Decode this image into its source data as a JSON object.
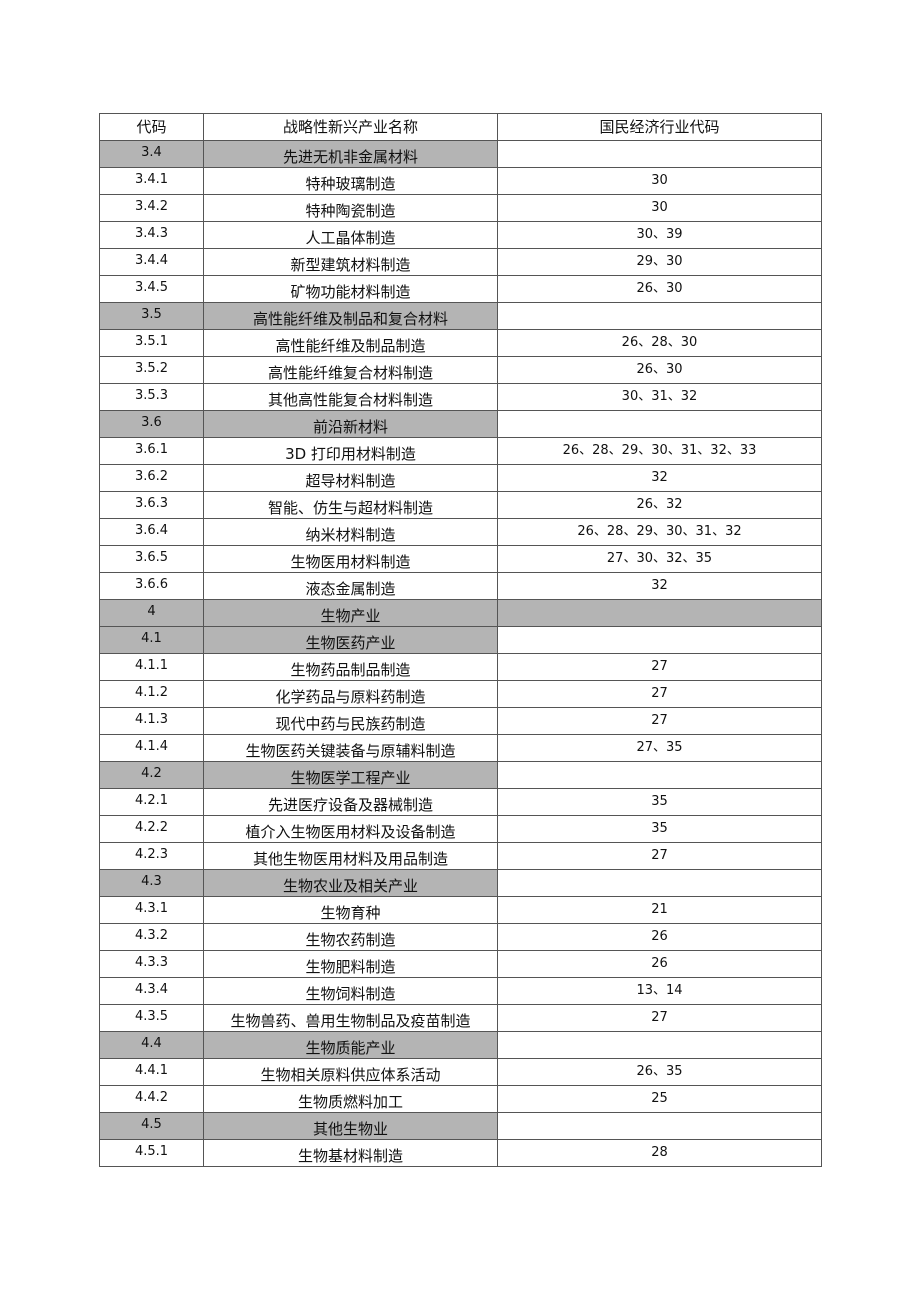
{
  "header": {
    "code": "代码",
    "name": "战略性新兴产业名称",
    "industry_code": "国民经济行业代码"
  },
  "colors": {
    "section_fill": "#b4b4b4",
    "border": "#555555"
  },
  "rows": [
    {
      "code": "3.4",
      "name": "先进无机非金属材料",
      "industry_code": "",
      "level": "section"
    },
    {
      "code": "3.4.1",
      "name": "特种玻璃制造",
      "industry_code": "30"
    },
    {
      "code": "3.4.2",
      "name": "特种陶瓷制造",
      "industry_code": "30"
    },
    {
      "code": "3.4.3",
      "name": "人工晶体制造",
      "industry_code": "30、39"
    },
    {
      "code": "3.4.4",
      "name": "新型建筑材料制造",
      "industry_code": "29、30"
    },
    {
      "code": "3.4.5",
      "name": "矿物功能材料制造",
      "industry_code": "26、30"
    },
    {
      "code": "3.5",
      "name": "高性能纤维及制品和复合材料",
      "industry_code": "",
      "level": "section"
    },
    {
      "code": "3.5.1",
      "name": "高性能纤维及制品制造",
      "industry_code": "26、28、30"
    },
    {
      "code": "3.5.2",
      "name": "高性能纤维复合材料制造",
      "industry_code": "26、30"
    },
    {
      "code": "3.5.3",
      "name": "其他高性能复合材料制造",
      "industry_code": "30、31、32"
    },
    {
      "code": "3.6",
      "name": "前沿新材料",
      "industry_code": "",
      "level": "section"
    },
    {
      "code": "3.6.1",
      "name": "3D 打印用材料制造",
      "industry_code": "26、28、29、30、31、32、33"
    },
    {
      "code": "3.6.2",
      "name": "超导材料制造",
      "industry_code": "32"
    },
    {
      "code": "3.6.3",
      "name": "智能、仿生与超材料制造",
      "industry_code": "26、32"
    },
    {
      "code": "3.6.4",
      "name": "纳米材料制造",
      "industry_code": "26、28、29、30、31、32"
    },
    {
      "code": "3.6.5",
      "name": "生物医用材料制造",
      "industry_code": "27、30、32、35"
    },
    {
      "code": "3.6.6",
      "name": "液态金属制造",
      "industry_code": "32"
    },
    {
      "code": "4",
      "name": "生物产业",
      "industry_code": "",
      "level": "top"
    },
    {
      "code": "4.1",
      "name": "生物医药产业",
      "industry_code": "",
      "level": "section"
    },
    {
      "code": "4.1.1",
      "name": "生物药品制品制造",
      "industry_code": "27"
    },
    {
      "code": "4.1.2",
      "name": "化学药品与原料药制造",
      "industry_code": "27"
    },
    {
      "code": "4.1.3",
      "name": "现代中药与民族药制造",
      "industry_code": "27"
    },
    {
      "code": "4.1.4",
      "name": "生物医药关键装备与原辅料制造",
      "industry_code": "27、35"
    },
    {
      "code": "4.2",
      "name": "生物医学工程产业",
      "industry_code": "",
      "level": "section"
    },
    {
      "code": "4.2.1",
      "name": "先进医疗设备及器械制造",
      "industry_code": "35"
    },
    {
      "code": "4.2.2",
      "name": "植介入生物医用材料及设备制造",
      "industry_code": "35"
    },
    {
      "code": "4.2.3",
      "name": "其他生物医用材料及用品制造",
      "industry_code": "27"
    },
    {
      "code": "4.3",
      "name": "生物农业及相关产业",
      "industry_code": "",
      "level": "section"
    },
    {
      "code": "4.3.1",
      "name": "生物育种",
      "industry_code": "21"
    },
    {
      "code": "4.3.2",
      "name": "生物农药制造",
      "industry_code": "26"
    },
    {
      "code": "4.3.3",
      "name": "生物肥料制造",
      "industry_code": "26"
    },
    {
      "code": "4.3.4",
      "name": "生物饲料制造",
      "industry_code": "13、14"
    },
    {
      "code": "4.3.5",
      "name": "生物兽药、兽用生物制品及疫苗制造",
      "industry_code": "27"
    },
    {
      "code": "4.4",
      "name": "生物质能产业",
      "industry_code": "",
      "level": "section"
    },
    {
      "code": "4.4.1",
      "name": "生物相关原料供应体系活动",
      "industry_code": "26、35"
    },
    {
      "code": "4.4.2",
      "name": "生物质燃料加工",
      "industry_code": "25"
    },
    {
      "code": "4.5",
      "name": "其他生物业",
      "industry_code": "",
      "level": "section"
    },
    {
      "code": "4.5.1",
      "name": "生物基材料制造",
      "industry_code": "28"
    }
  ]
}
